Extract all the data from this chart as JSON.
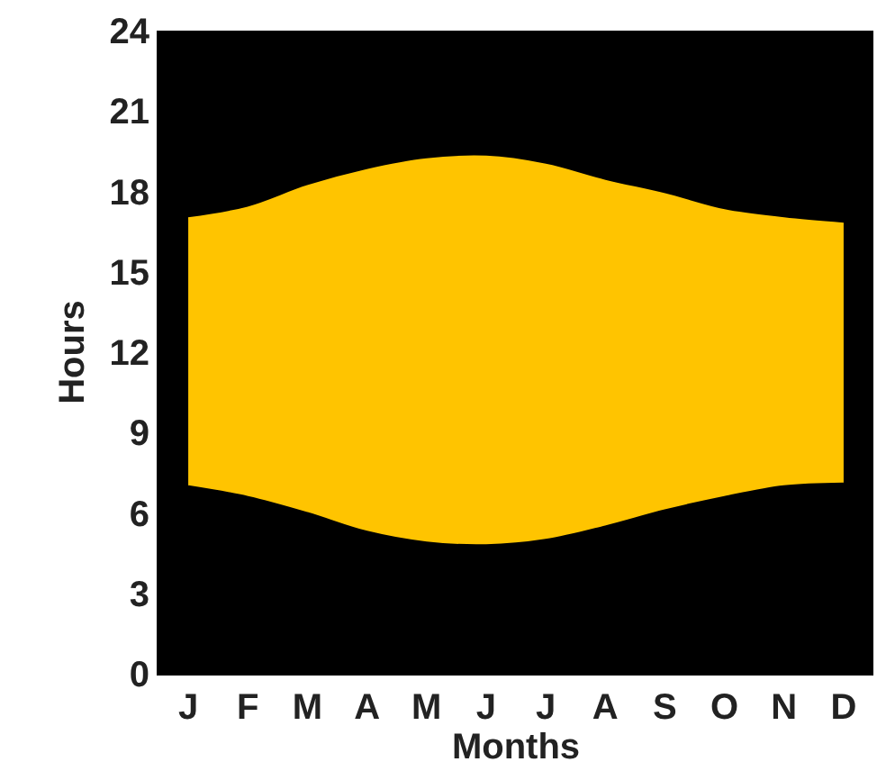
{
  "chart_data": {
    "type": "area",
    "stacked": true,
    "xlabel": "Months",
    "ylabel": "Hours",
    "categories": [
      "J",
      "F",
      "M",
      "A",
      "M",
      "J",
      "J",
      "A",
      "S",
      "O",
      "N",
      "D"
    ],
    "series": [
      {
        "color": "#000000",
        "values": [
          7.0,
          6.6,
          6.0,
          5.3,
          4.9,
          4.8,
          5.0,
          5.5,
          6.1,
          6.6,
          7.0,
          7.1
        ]
      },
      {
        "color": "#ffc400",
        "values": [
          10.0,
          10.8,
          12.2,
          13.5,
          14.3,
          14.5,
          14.0,
          12.9,
          11.8,
          10.7,
          10.0,
          9.7
        ]
      }
    ],
    "ylim": [
      0,
      24
    ],
    "yticks": [
      0,
      3,
      6,
      9,
      12,
      15,
      18,
      21,
      24
    ],
    "grid": false
  }
}
